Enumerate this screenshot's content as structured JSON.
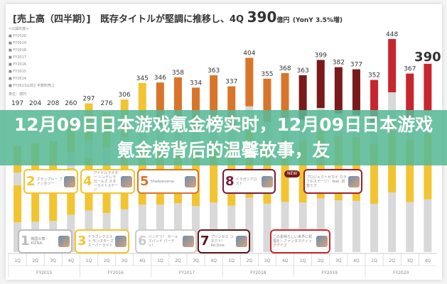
{
  "header": {
    "prefix": "[売上高（四半期）]",
    "headline": "既存タイトルが堅調に推移し、4Q",
    "value": "390",
    "unit": "億円",
    "yoy": "(YonY 3.5%増)"
  },
  "legend": {
    "title": "<公開年度>",
    "items": [
      "FY2020",
      "FY2019",
      "FY2018",
      "FY2017",
      "FY2016",
      "FY2015",
      "FY2014",
      "FY2013以前と手数料売上"
    ],
    "unit": "単位：億円"
  },
  "banner": {
    "title": "12月09日日本游戏氪金榜实时，12月09日日本游戏氪金榜背后的温馨故事，友"
  },
  "colors": {
    "banner": "#58ba96",
    "fy2013": "#d9d9d9",
    "fy2014": "#f2c431",
    "fy2015": "#e8a95a",
    "fy2016": "#d9752a",
    "fy2018": "#7a1a1a",
    "fy2020": "#c8262e"
  },
  "callouts": [
    {
      "num": "1",
      "text": "戦国炎舞 -KIZNA-",
      "color": "#bbbbbb"
    },
    {
      "num": "2",
      "text": "グランブルー ファンタジー",
      "color": "#f2c431"
    },
    {
      "num": "3",
      "text": "ドラゴンクエスト モンスターズ スーパーライト",
      "color": "#f2c431"
    },
    {
      "num": "4",
      "text": "アイドルマスター シンデレラガールズ スターライトステージ",
      "color": "#f2c431"
    },
    {
      "num": "5",
      "text": "Shadowverse",
      "color": "#d9752a"
    },
    {
      "num": "6",
      "text": "バンドリ！ ガールズバンド パーティ！",
      "color": "#cccccc"
    },
    {
      "num": "7",
      "text": "プリンセス コネクト！ Re:Dive",
      "color": "#5a1a1a"
    },
    {
      "num": "8",
      "text": "ドラガリアロスト",
      "color": "#7a1a3a"
    },
    {
      "num": "",
      "text": "プロジェクトセカイ カラフルステージ！ feat. 初音ミク",
      "color": "#a0202a"
    },
    {
      "num": "",
      "text": "この素晴らしい世界に祝福を！ファンタスティックデイズ",
      "color": "#c8262e"
    }
  ],
  "new_badge": "NEW",
  "chart_data": {
    "type": "bar",
    "title": "[売上高（四半期）]",
    "ylabel": "単位：億円",
    "categories": [
      "1Q",
      "2Q",
      "3Q",
      "4Q",
      "1Q",
      "2Q",
      "3Q",
      "4Q",
      "1Q",
      "2Q",
      "3Q",
      "4Q",
      "1Q",
      "2Q",
      "3Q",
      "4Q",
      "1Q",
      "2Q",
      "3Q",
      "4Q",
      "1Q",
      "2Q",
      "3Q",
      "4Q"
    ],
    "groups": [
      "FY2015",
      "FY2016",
      "FY2017",
      "FY2018",
      "FY2019",
      "FY2020"
    ],
    "values": [
      197,
      204,
      208,
      260,
      297,
      276,
      306,
      345,
      346,
      358,
      334,
      363,
      337,
      404,
      355,
      368,
      363,
      399,
      382,
      377,
      352,
      448,
      367,
      390
    ]
  }
}
